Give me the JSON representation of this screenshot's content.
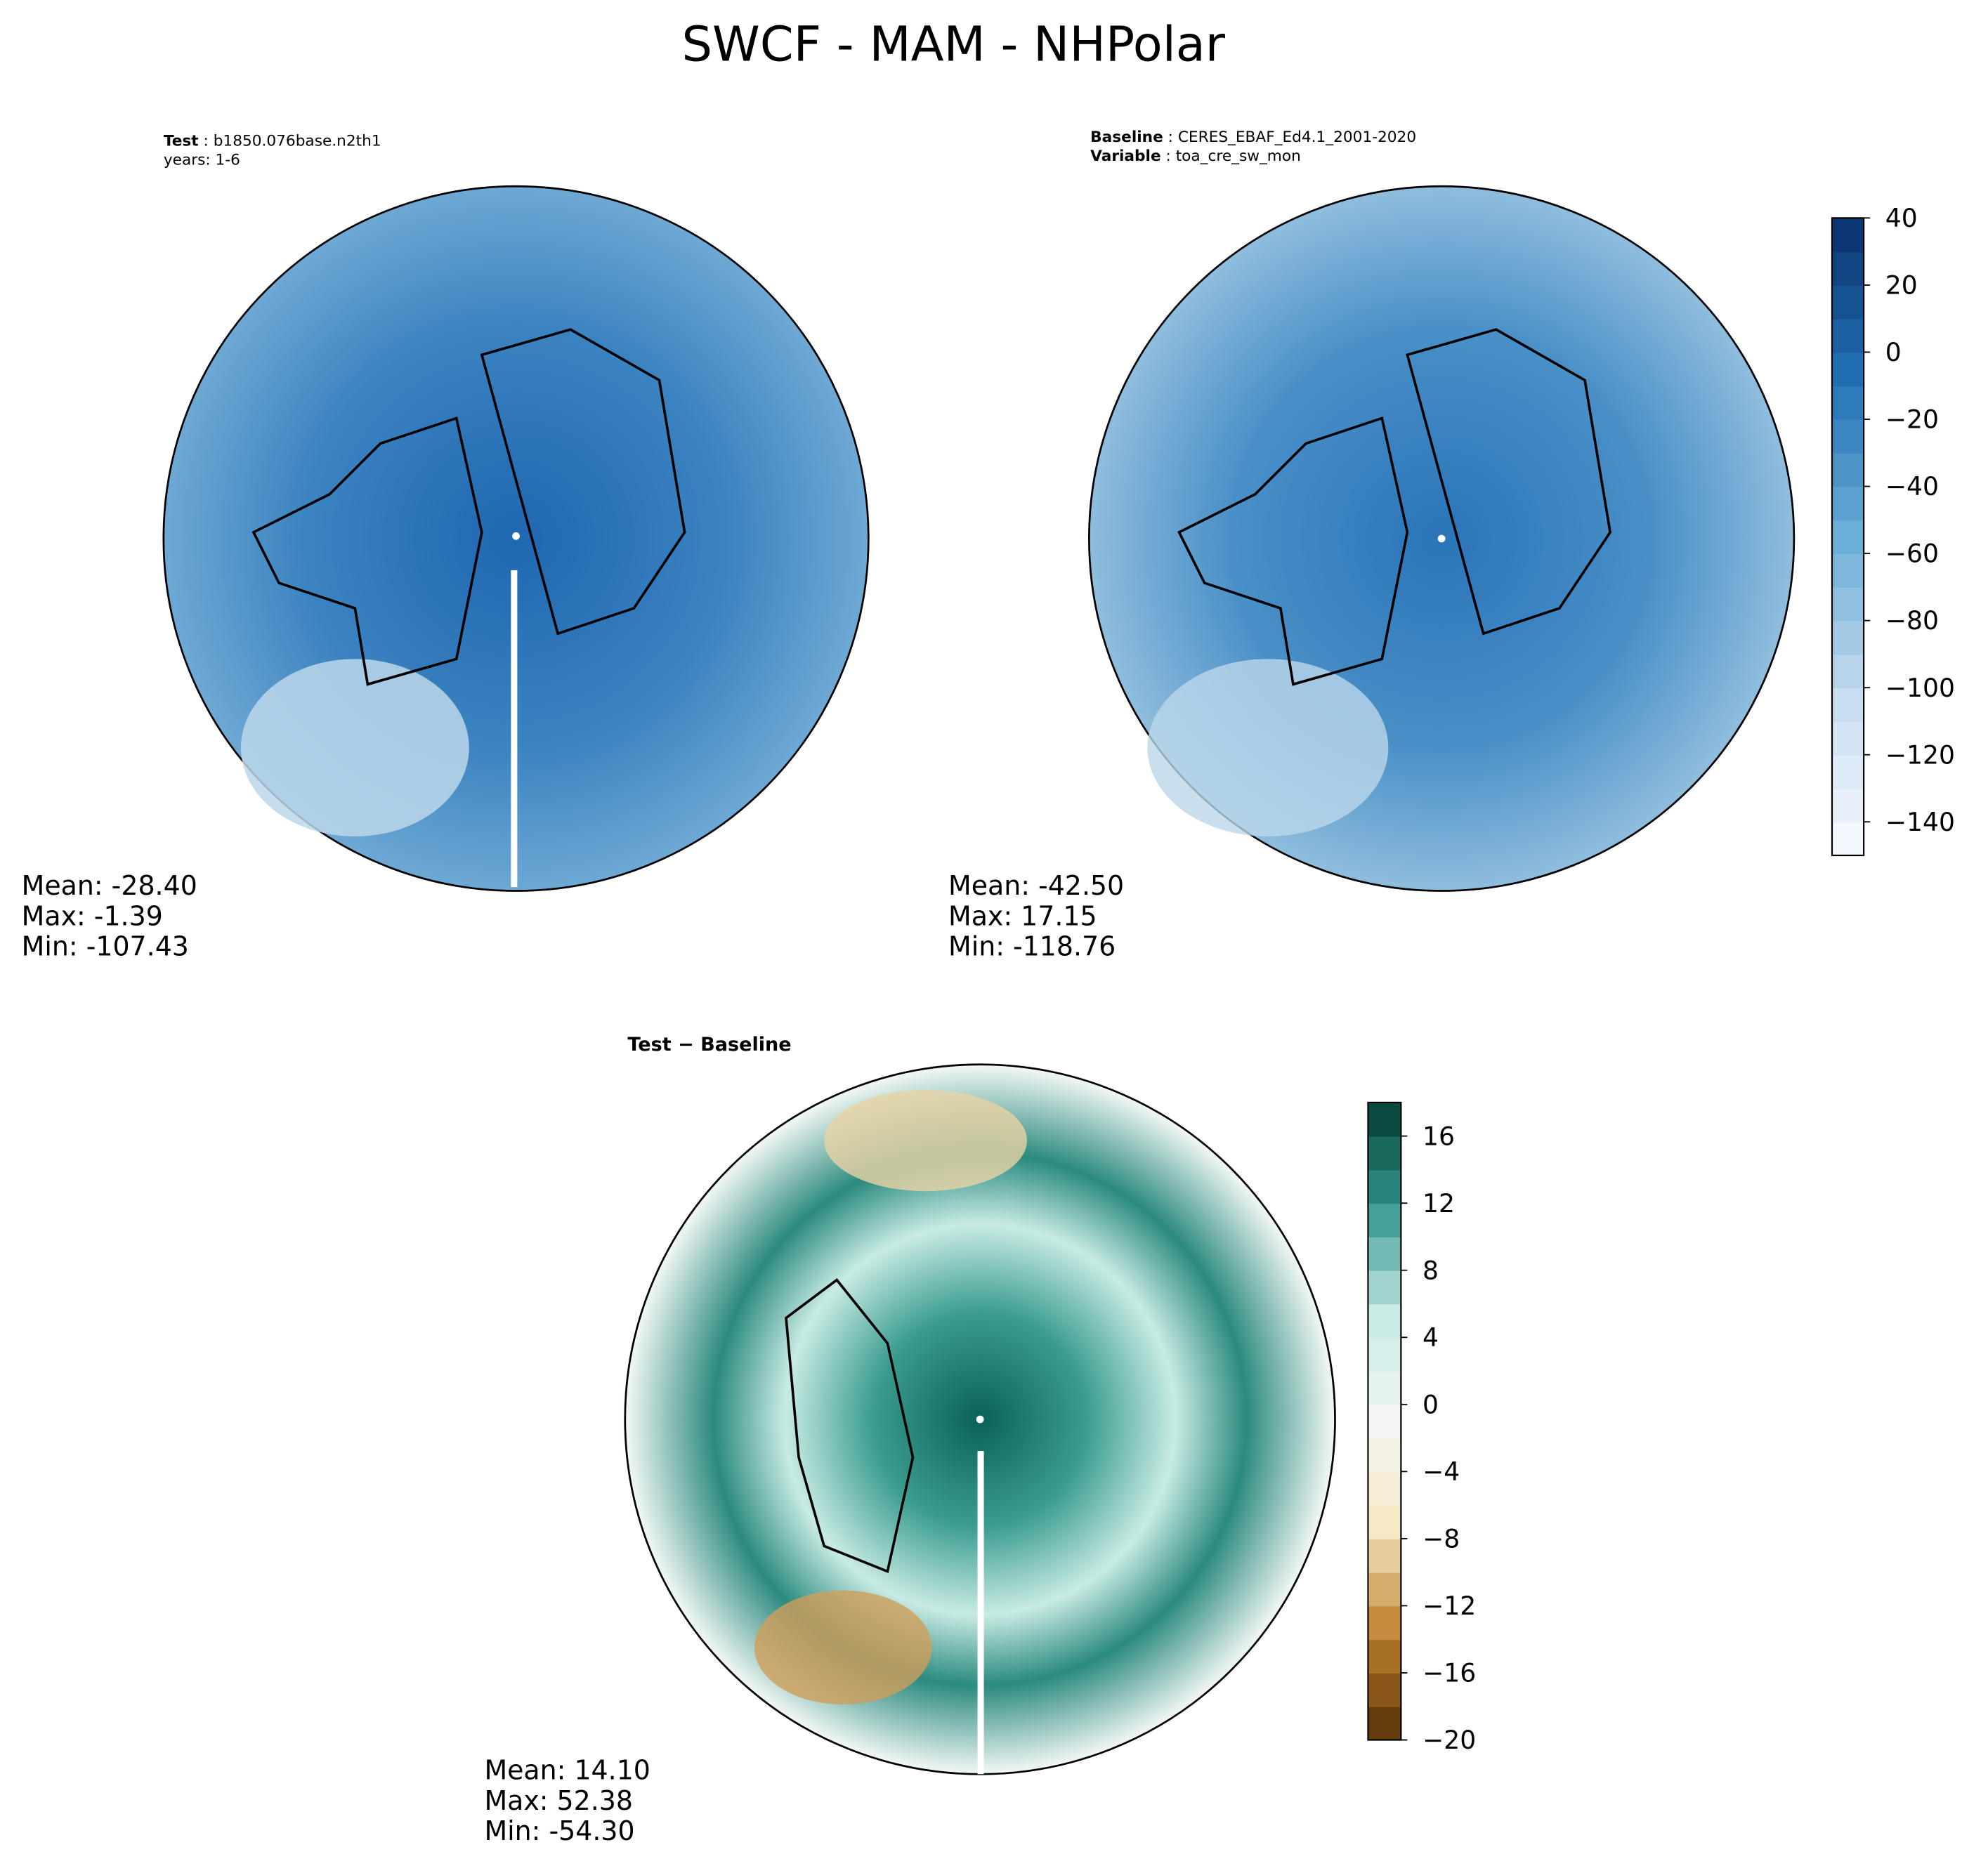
{
  "title": "SWCF - MAM - NHPolar",
  "panels": [
    {
      "lines": [
        {
          "key": "Test",
          "value": "b1850.076base.n2th1"
        },
        {
          "value": "years: 1-6"
        }
      ],
      "stats": [
        "Mean: -28.40",
        "Max: -1.39",
        "Min: -107.43"
      ]
    },
    {
      "lines": [
        {
          "key": "Baseline",
          "value": "CERES_EBAF_Ed4.1_2001-2020"
        },
        {
          "key": "Variable",
          "value": "toa_cre_sw_mon"
        }
      ],
      "stats": [
        "Mean: -42.50",
        "Max: 17.15",
        "Min: -118.76"
      ]
    },
    {
      "heading": "Test − Baseline",
      "stats": [
        "Mean: 14.10",
        "Max: 52.38",
        "Min: -54.30"
      ]
    }
  ],
  "colorbars": [
    {
      "lim": [
        -150,
        40
      ],
      "ticks": [
        40,
        20,
        0,
        {
          "value": -20,
          "label": "−20"
        },
        {
          "value": -40,
          "label": "−40"
        },
        {
          "value": -60,
          "label": "−60"
        },
        {
          "value": -80,
          "label": "−80"
        },
        {
          "value": -100,
          "label": "−100"
        },
        {
          "value": -120,
          "label": "−120"
        },
        {
          "value": -140,
          "label": "−140"
        }
      ]
    },
    {
      "lim": [
        -20,
        18
      ],
      "ticks": [
        16,
        12,
        8,
        4,
        0,
        {
          "value": -4,
          "label": "−4"
        },
        {
          "value": -8,
          "label": "−8"
        },
        {
          "value": -12,
          "label": "−12"
        },
        {
          "value": -16,
          "label": "−16"
        },
        {
          "value": -20,
          "label": "−20"
        }
      ]
    }
  ]
}
